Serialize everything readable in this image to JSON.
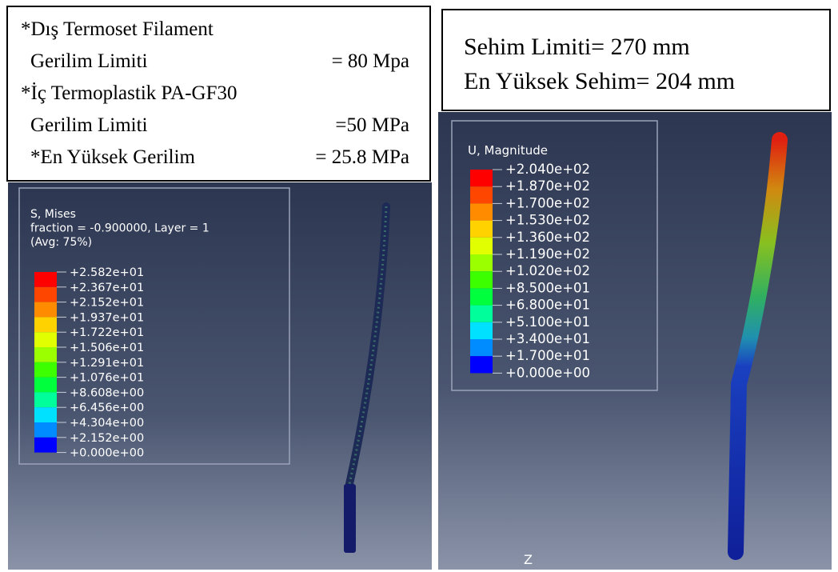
{
  "left": {
    "notes": [
      {
        "label": "*Dış Termoset Filament"
      },
      {
        "label": "Gerilim Limiti",
        "value": "= 80 Mpa"
      },
      {
        "label": "*İç Termoplastik PA-GF30"
      },
      {
        "label": "Gerilim Limiti",
        "value": "=50 MPa"
      },
      {
        "label": "*En Yüksek Gerilim",
        "value": "= 25.8 MPa"
      }
    ],
    "legend": {
      "title": [
        "S, Mises",
        "fraction = -0.900000, Layer = 1",
        "(Avg: 75%)"
      ],
      "labels": [
        "+2.582e+01",
        "+2.367e+01",
        "+2.152e+01",
        "+1.937e+01",
        "+1.722e+01",
        "+1.506e+01",
        "+1.291e+01",
        "+1.076e+01",
        "+8.608e+00",
        "+6.456e+00",
        "+4.304e+00",
        "+2.152e+00",
        "+0.000e+00"
      ]
    }
  },
  "right": {
    "notes": [
      "Sehim Limiti= 270 mm",
      "En Yüksek Sehim= 204 mm"
    ],
    "legend": {
      "title": [
        "U, Magnitude"
      ],
      "labels": [
        "+2.040e+02",
        "+1.870e+02",
        "+1.700e+02",
        "+1.530e+02",
        "+1.360e+02",
        "+1.190e+02",
        "+1.020e+02",
        "+8.500e+01",
        "+6.800e+01",
        "+5.100e+01",
        "+3.400e+01",
        "+1.700e+01",
        "+0.000e+00"
      ]
    },
    "axis_label": "Z"
  }
}
